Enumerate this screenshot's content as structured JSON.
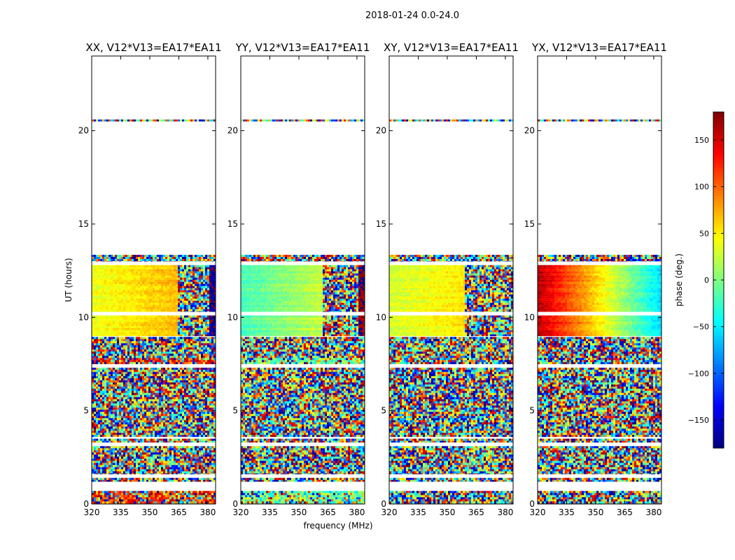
{
  "figure": {
    "suptitle": "2018-01-24 0.0-24.0",
    "xlabel": "frequency (MHz)",
    "ylabel": "UT (hours)"
  },
  "chart_data": {
    "type": "heatmap",
    "colormap": "jet",
    "xlim": [
      320,
      384
    ],
    "ylim": [
      0,
      24
    ],
    "xticks": [
      320,
      335,
      350,
      365,
      380
    ],
    "yticks": [
      0,
      5,
      10,
      15,
      20
    ],
    "panels": [
      {
        "title": "XX, V12*V13=EA17*EA11",
        "base": 40,
        "grad": 45,
        "rfi_freq": 364,
        "end_freq": 380,
        "end_phase": -170,
        "early": 120
      },
      {
        "title": "YY, V12*V13=EA17*EA11",
        "base": -20,
        "grad": 70,
        "rfi_freq": 362,
        "end_freq": 380,
        "end_phase": 175,
        "early": -10
      },
      {
        "title": "XY, V12*V13=EA17*EA11",
        "base": 30,
        "grad": 40,
        "rfi_freq": 358,
        "end_freq": 999,
        "end_phase": 0,
        "early": 0
      },
      {
        "title": "YX, V12*V13=EA17*EA11",
        "base": 160,
        "grad": -220,
        "rfi_freq": 999,
        "end_freq": 999,
        "end_phase": 0,
        "early": 0
      }
    ],
    "coherent_time_range": [
      9.0,
      12.8
    ],
    "data_bands": [
      [
        0.0,
        0.7
      ],
      [
        1.2,
        1.4
      ],
      [
        1.6,
        3.1
      ],
      [
        3.3,
        3.5
      ],
      [
        3.6,
        7.3
      ],
      [
        7.5,
        8.95
      ],
      [
        9.0,
        10.1
      ],
      [
        10.3,
        12.8
      ],
      [
        13.0,
        13.35
      ],
      [
        20.5,
        20.6
      ]
    ],
    "colorbar": {
      "label": "phase (deg.)",
      "range": [
        -180,
        180
      ],
      "ticks": [
        -150,
        -100,
        -50,
        0,
        50,
        100,
        150
      ],
      "tick_labels": [
        "−150",
        "−100",
        "−50",
        "0",
        "50",
        "100",
        "150"
      ]
    }
  }
}
